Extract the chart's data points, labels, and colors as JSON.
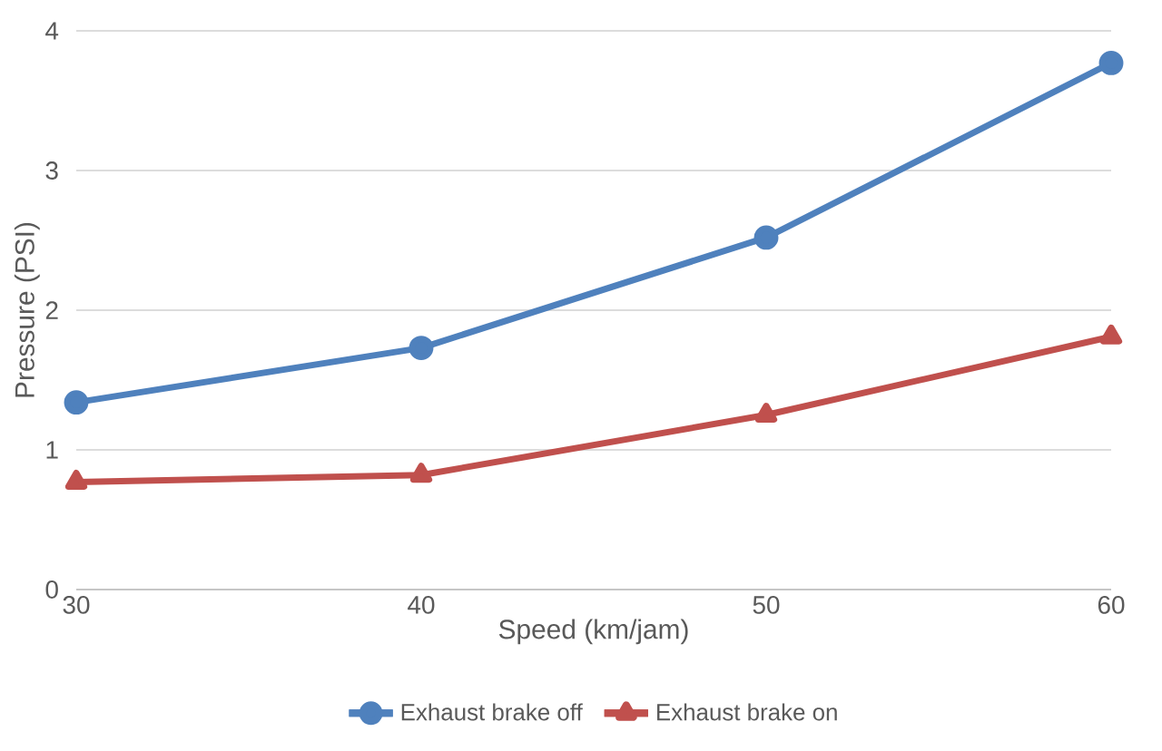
{
  "chart_data": {
    "type": "line",
    "xlabel": "Speed (km/jam)",
    "ylabel": "Pressure (PSI)",
    "x": [
      30,
      40,
      50,
      60
    ],
    "xlim": [
      30,
      60
    ],
    "xticks": [
      30,
      40,
      50,
      60
    ],
    "ylim": [
      0,
      4
    ],
    "yticks": [
      0,
      1,
      2,
      3,
      4
    ],
    "grid": "y",
    "legend": "bottom",
    "line_style": "solid",
    "series": [
      {
        "name": "Exhaust brake off",
        "color": "#4f81bd",
        "marker": "circle",
        "values": [
          1.34,
          1.73,
          2.52,
          3.77
        ]
      },
      {
        "name": "Exhaust brake on",
        "color": "#c0504d",
        "marker": "triangle",
        "values": [
          0.77,
          0.82,
          1.25,
          1.81
        ]
      }
    ]
  }
}
